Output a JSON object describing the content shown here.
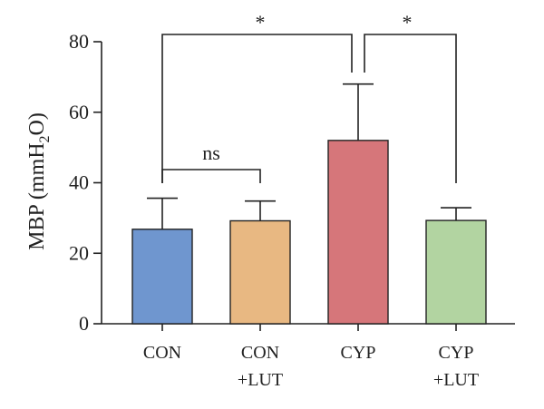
{
  "chart_data": {
    "type": "bar",
    "categories": [
      [
        "CON"
      ],
      [
        "CON",
        "+LUT"
      ],
      [
        "CYP"
      ],
      [
        "CYP",
        "+LUT"
      ]
    ],
    "values": [
      26.8,
      29.2,
      52.0,
      29.3
    ],
    "errors": [
      8.8,
      5.6,
      16.0,
      3.6
    ],
    "colors": [
      "#6f96cf",
      "#e8b882",
      "#d6767a",
      "#b2d4a1"
    ],
    "ylabel": "MBP (mmH2O)",
    "ylabel_parts": {
      "main": "MBP (mmH",
      "sub": "2",
      "tail": "O)"
    },
    "ylim": [
      0,
      80
    ],
    "yticks": [
      0,
      20,
      40,
      60,
      80
    ],
    "grid": false,
    "comparisons": [
      {
        "from": 0,
        "to": 1,
        "label": "ns"
      },
      {
        "from": 0,
        "to": 2,
        "label": "*"
      },
      {
        "from": 2,
        "to": 3,
        "label": "*"
      }
    ]
  }
}
